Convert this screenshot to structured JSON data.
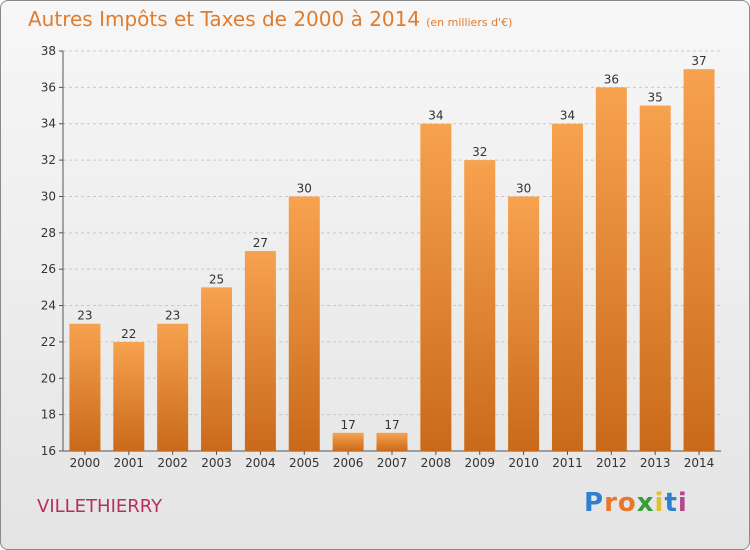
{
  "title": "Autres Impôts et Taxes de 2000 à 2014",
  "unit": "(en milliers d'€)",
  "commune": "VILLETHIERRY",
  "logo": {
    "text": "Proxiti",
    "colors": [
      "#2e7fd0",
      "#e8762c",
      "#e8762c",
      "#3a9b3a",
      "#e0c22c",
      "#2e7fd0",
      "#b8458f"
    ]
  },
  "colors": {
    "bar_light": "#f7a24f",
    "bar_dark": "#c96a1a",
    "title": "#e07c2e",
    "commune": "#b5315a"
  },
  "chart_data": {
    "type": "bar",
    "categories": [
      "2000",
      "2001",
      "2002",
      "2003",
      "2004",
      "2005",
      "2006",
      "2007",
      "2008",
      "2009",
      "2010",
      "2011",
      "2012",
      "2013",
      "2014"
    ],
    "values": [
      23,
      22,
      23,
      25,
      27,
      30,
      17,
      17,
      34,
      32,
      30,
      34,
      36,
      35,
      37
    ],
    "ylim": [
      16,
      38
    ],
    "yticks": [
      16,
      18,
      20,
      22,
      24,
      26,
      28,
      30,
      32,
      34,
      36,
      38
    ],
    "grid": true,
    "data_labels": true
  }
}
